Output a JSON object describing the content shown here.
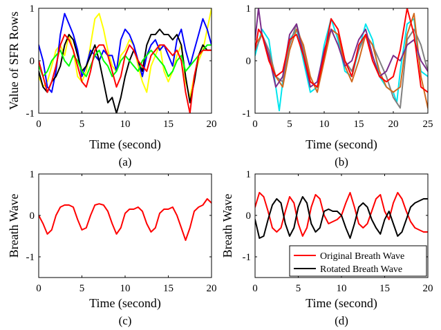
{
  "chart_data": [
    {
      "type": "line",
      "caption": "(a)",
      "xlabel": "Time (second)",
      "ylabel": "Value of SFR Rows",
      "xlim": [
        0,
        20
      ],
      "ylim": [
        -1,
        1
      ],
      "xticks": [
        "0",
        "5",
        "10",
        "15",
        "20"
      ],
      "yticks": [
        "-1",
        "0",
        "1"
      ],
      "series": [
        {
          "color": "#ffff00",
          "x": [
            0,
            0.5,
            1,
            1.5,
            2,
            2.5,
            3,
            3.5,
            4,
            4.5,
            5,
            5.5,
            6,
            6.5,
            7,
            7.5,
            8,
            8.5,
            9,
            9.5,
            10,
            10.5,
            11,
            11.5,
            12,
            12.5,
            13,
            13.5,
            14,
            14.5,
            15,
            15.5,
            16,
            16.5,
            17,
            17.5,
            18,
            18.5,
            19,
            19.5,
            20
          ],
          "y": [
            -0.3,
            -0.5,
            -0.4,
            -0.1,
            0.2,
            0.3,
            0.1,
            0.5,
            0.2,
            -0.3,
            -0.4,
            -0.2,
            0.3,
            0.8,
            0.9,
            0.6,
            0.2,
            -0.1,
            -0.2,
            0.1,
            0.2,
            0.4,
            0.3,
            -0.1,
            -0.4,
            -0.6,
            -0.1,
            0.1,
            0.3,
            -0.2,
            -0.4,
            -0.2,
            0.1,
            0.3,
            -0.4,
            -0.7,
            -0.3,
            0.0,
            0.2,
            0.6,
            1.0
          ]
        },
        {
          "color": "#0000ff",
          "x": [
            0,
            0.5,
            1,
            1.5,
            2,
            2.5,
            3,
            3.5,
            4,
            4.5,
            5,
            5.5,
            6,
            6.5,
            7,
            7.5,
            8,
            8.5,
            9,
            9.5,
            10,
            10.5,
            11,
            11.5,
            12,
            12.5,
            13,
            13.5,
            14,
            14.5,
            15,
            15.5,
            16,
            16.5,
            17,
            17.5,
            18,
            18.5,
            19,
            19.5,
            20
          ],
          "y": [
            0.3,
            0.0,
            -0.5,
            -0.6,
            -0.2,
            0.5,
            0.9,
            0.7,
            0.5,
            0.2,
            -0.3,
            -0.1,
            0.2,
            0.1,
            0.0,
            0.2,
            0.1,
            0.1,
            -0.2,
            0.4,
            0.6,
            0.5,
            0.3,
            0.0,
            -0.3,
            0.1,
            0.3,
            0.4,
            0.2,
            0.3,
            0.1,
            -0.1,
            0.4,
            0.6,
            0.2,
            -0.1,
            0.2,
            0.5,
            0.8,
            0.6,
            0.3
          ]
        },
        {
          "color": "#000000",
          "x": [
            0,
            0.5,
            1,
            1.5,
            2,
            2.5,
            3,
            3.5,
            4,
            4.5,
            5,
            5.5,
            6,
            6.5,
            7,
            7.5,
            8,
            8.5,
            9,
            9.5,
            10,
            10.5,
            11,
            11.5,
            12,
            12.5,
            13,
            13.5,
            14,
            14.5,
            15,
            15.5,
            16,
            16.5,
            17,
            17.5,
            18,
            18.5,
            19,
            19.5,
            20
          ],
          "y": [
            -0.2,
            -0.5,
            -0.6,
            -0.4,
            -0.3,
            -0.1,
            0.3,
            0.5,
            0.4,
            0.1,
            -0.2,
            -0.1,
            0.1,
            0.3,
            0.0,
            -0.4,
            -0.8,
            -0.7,
            -1.0,
            -0.7,
            -0.3,
            0.0,
            0.2,
            0.0,
            -0.2,
            0.3,
            0.5,
            0.5,
            0.6,
            0.5,
            0.5,
            0.4,
            0.5,
            0.3,
            -0.3,
            -0.8,
            -0.4,
            0.1,
            0.3,
            0.2,
            0.2
          ]
        },
        {
          "color": "#00ff00",
          "x": [
            0,
            0.5,
            1,
            1.5,
            2,
            2.5,
            3,
            3.5,
            4,
            4.5,
            5,
            5.5,
            6,
            6.5,
            7,
            7.5,
            8,
            8.5,
            9,
            9.5,
            10,
            10.5,
            11,
            11.5,
            12,
            12.5,
            13,
            13.5,
            14,
            14.5,
            15,
            15.5,
            16,
            16.5,
            17,
            17.5,
            18,
            18.5,
            19,
            19.5,
            20
          ],
          "y": [
            -0.1,
            -0.3,
            -0.2,
            0.0,
            0.1,
            0.2,
            0.0,
            -0.1,
            0.1,
            0.0,
            -0.2,
            -0.3,
            -0.1,
            0.1,
            0.2,
            0.0,
            -0.1,
            -0.3,
            -0.2,
            0.0,
            0.1,
            0.0,
            -0.1,
            -0.2,
            0.0,
            0.1,
            0.2,
            0.1,
            0.0,
            -0.1,
            -0.3,
            -0.2,
            0.0,
            0.1,
            -0.2,
            -0.1,
            0.0,
            0.1,
            0.2,
            0.3,
            0.3
          ]
        },
        {
          "color": "#ff0000",
          "x": [
            0,
            0.5,
            1,
            1.5,
            2,
            2.5,
            3,
            3.5,
            4,
            4.5,
            5,
            5.5,
            6,
            6.5,
            7,
            7.5,
            8,
            8.5,
            9,
            9.5,
            10,
            10.5,
            11,
            11.5,
            12,
            12.5,
            13,
            13.5,
            14,
            14.5,
            15,
            15.5,
            16,
            16.5,
            17,
            17.5,
            18,
            18.5,
            19,
            19.5,
            20
          ],
          "y": [
            0.0,
            -0.3,
            -0.6,
            -0.4,
            -0.1,
            0.3,
            0.5,
            0.4,
            0.2,
            -0.1,
            -0.4,
            -0.5,
            -0.2,
            0.2,
            0.3,
            0.3,
            0.1,
            -0.2,
            -0.5,
            -0.3,
            0.1,
            0.3,
            0.2,
            0.0,
            -0.1,
            -0.2,
            0.1,
            0.2,
            0.3,
            0.3,
            0.2,
            0.1,
            0.2,
            0.0,
            -0.6,
            -1.0,
            -0.3,
            0.1,
            0.2,
            0.2,
            0.2
          ]
        }
      ]
    },
    {
      "type": "line",
      "caption": "(b)",
      "xlabel": "Time (second)",
      "ylabel": "",
      "xlim": [
        0,
        25
      ],
      "ylim": [
        -1,
        1
      ],
      "xticks": [
        "0",
        "5",
        "10",
        "15",
        "20",
        "25"
      ],
      "yticks": [
        "-1",
        "0",
        "1"
      ],
      "series": [
        {
          "color": "#00e5ee",
          "x": [
            0,
            1,
            2,
            3,
            3.5,
            4,
            5,
            6,
            7,
            8,
            9,
            10,
            11,
            12,
            13,
            14,
            15,
            16,
            17,
            18,
            19,
            20,
            20.5,
            21,
            22,
            23,
            23.5,
            24,
            25
          ],
          "y": [
            0.1,
            0.6,
            0.4,
            -0.5,
            -0.95,
            -0.4,
            0.4,
            0.6,
            0.0,
            -0.6,
            -0.5,
            0.3,
            0.8,
            0.4,
            -0.2,
            -0.3,
            0.2,
            0.7,
            0.4,
            -0.3,
            -0.5,
            -0.6,
            -0.8,
            -0.2,
            0.7,
            0.8,
            0.2,
            -0.2,
            -0.3
          ]
        },
        {
          "color": "#808080",
          "x": [
            0,
            1,
            2,
            3,
            4,
            5,
            6,
            7,
            8,
            9,
            10,
            11,
            12,
            13,
            14,
            15,
            16,
            17,
            18,
            19,
            20,
            21,
            22,
            23,
            24,
            25
          ],
          "y": [
            0.2,
            0.5,
            0.2,
            -0.3,
            -0.4,
            0.3,
            0.7,
            0.2,
            -0.4,
            -0.5,
            0.1,
            0.6,
            0.5,
            0.0,
            -0.2,
            0.2,
            0.5,
            0.3,
            0.0,
            -0.3,
            -0.7,
            -0.9,
            0.4,
            0.6,
            0.3,
            -0.2
          ]
        },
        {
          "color": "#d2691e",
          "x": [
            0,
            1,
            2,
            3,
            4,
            5,
            6,
            7,
            8,
            9,
            10,
            11,
            12,
            13,
            14,
            15,
            16,
            17,
            18,
            19,
            20,
            21,
            22,
            23,
            24,
            25
          ],
          "y": [
            0.3,
            0.5,
            0.1,
            -0.3,
            -0.5,
            0.2,
            0.6,
            0.3,
            -0.3,
            -0.6,
            0.0,
            0.6,
            0.5,
            -0.1,
            -0.4,
            0.0,
            0.5,
            0.3,
            -0.2,
            -0.5,
            -0.6,
            -0.5,
            0.5,
            0.9,
            -0.3,
            -0.9
          ]
        },
        {
          "color": "#7b2d8b",
          "x": [
            0,
            0.5,
            1,
            2,
            3,
            4,
            5,
            6,
            7,
            8,
            9,
            10,
            11,
            12,
            13,
            14,
            15,
            16,
            17,
            18,
            19,
            20,
            21,
            22,
            23,
            24,
            25
          ],
          "y": [
            0.4,
            1.0,
            0.5,
            0.1,
            -0.5,
            -0.3,
            0.5,
            0.7,
            0.1,
            -0.5,
            -0.4,
            0.2,
            0.6,
            0.3,
            -0.1,
            0.0,
            0.4,
            0.6,
            0.1,
            -0.3,
            -0.2,
            0.1,
            0.0,
            0.3,
            0.4,
            0.0,
            -0.2
          ]
        },
        {
          "color": "#ff0000",
          "x": [
            0,
            0.5,
            1,
            2,
            3,
            4,
            5,
            6,
            7,
            8,
            9,
            10,
            11,
            12,
            13,
            14,
            15,
            16,
            17,
            18,
            19,
            20,
            21,
            22,
            23,
            24,
            25
          ],
          "y": [
            0.2,
            0.6,
            0.5,
            0.0,
            -0.3,
            -0.2,
            0.4,
            0.5,
            0.1,
            -0.4,
            -0.5,
            0.1,
            0.8,
            0.6,
            0.0,
            -0.3,
            0.3,
            0.5,
            0.0,
            -0.3,
            -0.4,
            -0.3,
            0.2,
            1.0,
            0.5,
            -0.5,
            -0.6
          ]
        }
      ]
    },
    {
      "type": "line",
      "caption": "(c)",
      "xlabel": "Time (second)",
      "ylabel": "Breath Wave",
      "xlim": [
        0,
        20
      ],
      "ylim": [
        -1.5,
        1
      ],
      "xticks": [
        "0",
        "5",
        "10",
        "15",
        "20"
      ],
      "yticks": [
        "-1",
        "0",
        "1"
      ],
      "series": [
        {
          "color": "#ff0000",
          "x": [
            0,
            0.5,
            1,
            1.5,
            2,
            2.5,
            3,
            3.5,
            4,
            4.5,
            5,
            5.5,
            6,
            6.5,
            7,
            7.5,
            8,
            8.5,
            9,
            9.5,
            10,
            10.5,
            11,
            11.5,
            12,
            12.5,
            13,
            13.5,
            14,
            14.5,
            15,
            15.5,
            16,
            16.5,
            17,
            17.5,
            18,
            18.5,
            19,
            19.5,
            20
          ],
          "y": [
            0.0,
            -0.2,
            -0.45,
            -0.35,
            0.0,
            0.2,
            0.25,
            0.25,
            0.2,
            -0.1,
            -0.35,
            -0.3,
            0.0,
            0.25,
            0.28,
            0.25,
            0.1,
            -0.2,
            -0.45,
            -0.3,
            0.05,
            0.15,
            0.15,
            0.2,
            0.1,
            -0.2,
            -0.4,
            -0.3,
            0.05,
            0.15,
            0.15,
            0.2,
            0.0,
            -0.3,
            -0.6,
            -0.3,
            0.1,
            0.2,
            0.25,
            0.4,
            0.3
          ]
        }
      ]
    },
    {
      "type": "line",
      "caption": "(d)",
      "xlabel": "Time (second)",
      "ylabel": "Breath Wave",
      "xlim": [
        0,
        20
      ],
      "ylim": [
        -1.5,
        1
      ],
      "xticks": [
        "0",
        "5",
        "10",
        "15",
        "20"
      ],
      "yticks": [
        "-1",
        "0",
        "1"
      ],
      "legend": {
        "position": "bottom-right",
        "entries": [
          "Original Breath Wave",
          "Rotated Breath Wave"
        ]
      },
      "series": [
        {
          "name": "Original Breath Wave",
          "color": "#ff0000",
          "x": [
            0,
            0.5,
            1,
            1.5,
            2,
            2.5,
            3,
            3.5,
            4,
            4.5,
            5,
            5.5,
            6,
            6.5,
            7,
            7.5,
            8,
            8.5,
            9,
            9.5,
            10,
            10.5,
            11,
            11.5,
            12,
            12.5,
            13,
            13.5,
            14,
            14.5,
            15,
            15.5,
            16,
            16.5,
            17,
            17.5,
            18,
            18.5,
            19,
            19.5,
            20
          ],
          "y": [
            0.2,
            0.55,
            0.45,
            0.1,
            -0.3,
            -0.4,
            -0.3,
            0.1,
            0.45,
            0.3,
            -0.2,
            -0.5,
            -0.3,
            0.2,
            0.5,
            0.4,
            0.0,
            -0.2,
            -0.15,
            -0.1,
            0.0,
            0.3,
            0.55,
            0.2,
            -0.2,
            -0.3,
            -0.2,
            0.1,
            0.4,
            0.5,
            0.1,
            -0.1,
            0.3,
            0.55,
            0.4,
            0.1,
            -0.15,
            -0.3,
            -0.35,
            -0.4,
            -0.4
          ]
        },
        {
          "name": "Rotated Breath Wave",
          "color": "#000000",
          "x": [
            0,
            0.5,
            1,
            1.5,
            2,
            2.5,
            3,
            3.5,
            4,
            4.5,
            5,
            5.5,
            6,
            6.5,
            7,
            7.5,
            8,
            8.5,
            9,
            9.5,
            10,
            10.5,
            11,
            11.5,
            12,
            12.5,
            13,
            13.5,
            14,
            14.5,
            15,
            15.5,
            16,
            16.5,
            17,
            17.5,
            18,
            18.5,
            19,
            19.5,
            20
          ],
          "y": [
            -0.1,
            -0.55,
            -0.5,
            -0.1,
            0.25,
            0.4,
            0.3,
            -0.2,
            -0.5,
            -0.3,
            0.2,
            0.45,
            0.3,
            -0.2,
            -0.4,
            -0.3,
            0.1,
            0.15,
            0.1,
            0.1,
            0.0,
            -0.3,
            -0.55,
            -0.2,
            0.2,
            0.3,
            0.2,
            -0.1,
            -0.3,
            -0.45,
            -0.1,
            0.1,
            -0.2,
            -0.5,
            -0.4,
            -0.1,
            0.2,
            0.3,
            0.35,
            0.4,
            0.4
          ]
        }
      ]
    }
  ]
}
